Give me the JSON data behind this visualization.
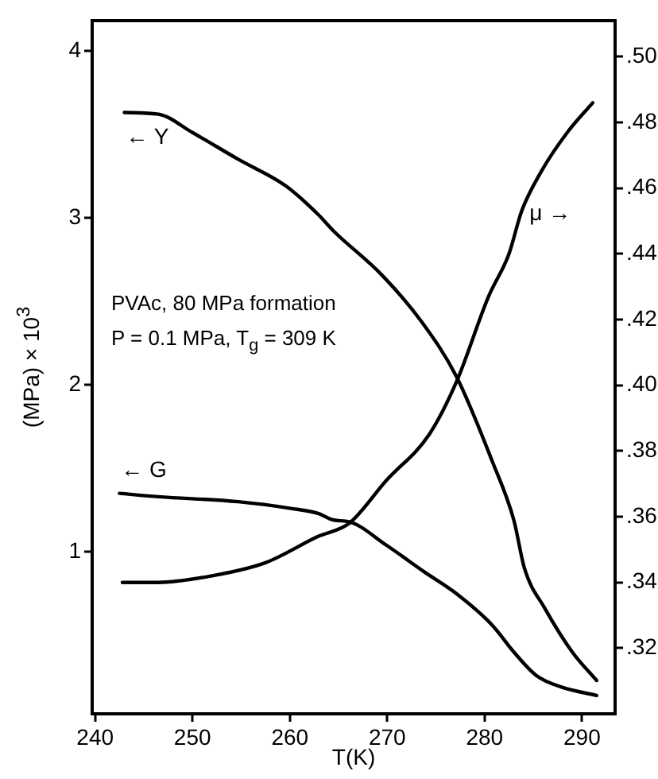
{
  "chart_data": {
    "type": "line",
    "xlabel": "T(K)",
    "ylabel": "(MPa) × 10$^{3}$",
    "xlim": [
      239.7,
      293.4
    ],
    "xticks": [
      240,
      250,
      260,
      270,
      280,
      290
    ],
    "ylim": [
      0.03,
      4.18
    ],
    "yticks": [
      1,
      2,
      3,
      4
    ],
    "y2lim": [
      0.3,
      0.511
    ],
    "y2ticks": [
      {
        "value": 0.32,
        "label": ".32"
      },
      {
        "value": 0.34,
        "label": ".34"
      },
      {
        "value": 0.36,
        "label": ".36"
      },
      {
        "value": 0.38,
        "label": ".38"
      },
      {
        "value": 0.4,
        "label": ".40"
      },
      {
        "value": 0.42,
        "label": ".42"
      },
      {
        "value": 0.44,
        "label": ".44"
      },
      {
        "value": 0.46,
        "label": ".46"
      },
      {
        "value": 0.48,
        "label": ".48"
      },
      {
        "value": 0.5,
        "label": ".50"
      }
    ],
    "grid": false,
    "legend": false,
    "marker": "none",
    "line_style": "solid",
    "series": [
      {
        "color": "#000000",
        "x": [
          243,
          246.5,
          250,
          254.7,
          259.6,
          262.9,
          264.5,
          269.4,
          273.5,
          277.1,
          280.8,
          283,
          284.1,
          286.2,
          289,
          291.5
        ],
        "values": [
          3.63,
          3.62,
          3.51,
          3.35,
          3.19,
          3.02,
          2.92,
          2.66,
          2.38,
          2.05,
          1.54,
          1.19,
          0.9,
          0.66,
          0.4,
          0.23
        ]
      },
      {
        "color": "#000000",
        "x": [
          242.5,
          246.5,
          254.7,
          260.1,
          262.9,
          264.5,
          266.1,
          269.9,
          273.8,
          277.1,
          280.8,
          283,
          285.3,
          287.9,
          291.5
        ],
        "values": [
          1.35,
          1.33,
          1.3,
          1.26,
          1.23,
          1.19,
          1.18,
          1.04,
          0.88,
          0.75,
          0.56,
          0.4,
          0.26,
          0.19,
          0.14
        ]
      },
      {
        "color": "#000000",
        "axis": "y2",
        "x": [
          242.8,
          246.5,
          252,
          257.5,
          262.9,
          266.1,
          269.9,
          274.3,
          277.1,
          280.4,
          282.5,
          283.8,
          285.8,
          288.5,
          291.1
        ],
        "values": [
          0.34,
          0.34,
          0.342,
          0.346,
          0.354,
          0.358,
          0.371,
          0.385,
          0.401,
          0.427,
          0.44,
          0.453,
          0.465,
          0.477,
          0.486
        ]
      }
    ],
    "annotations": [
      {
        "text": "← Y",
        "x": 243,
        "y": 3.63
      },
      {
        "text": "← G",
        "x": 242.5,
        "y": 1.35
      },
      {
        "text": "μ →",
        "x": 283.8,
        "y": 3.04
      },
      "PVAc, 80 MPa formation",
      "P = 0.1 MPa, T$_{g}$ = 309 K"
    ]
  }
}
